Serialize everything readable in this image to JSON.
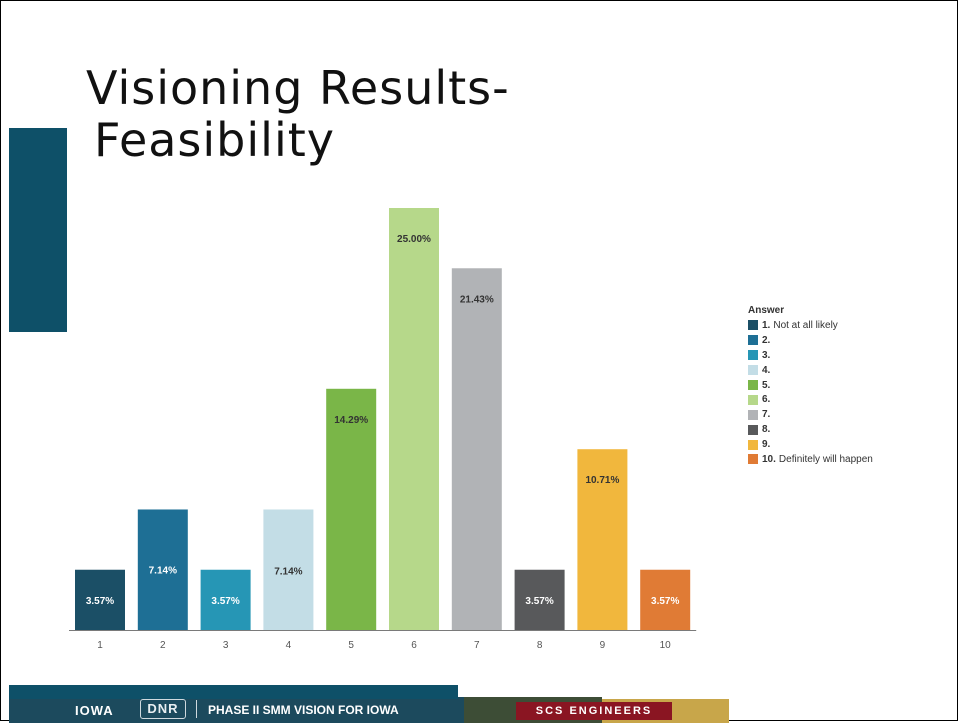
{
  "title": {
    "line1": "Visioning Results-",
    "line2": "Feasibility"
  },
  "chart_data": {
    "type": "bar",
    "categories": [
      "1",
      "2",
      "3",
      "4",
      "5",
      "6",
      "7",
      "8",
      "9",
      "10"
    ],
    "values": [
      3.57,
      7.14,
      3.57,
      7.14,
      14.29,
      25.0,
      21.43,
      3.57,
      10.71,
      3.57
    ],
    "value_labels": [
      "3.57%",
      "7.14%",
      "3.57%",
      "7.14%",
      "14.29%",
      "25.00%",
      "21.43%",
      "3.57%",
      "10.71%",
      "3.57%"
    ],
    "colors": [
      "#1b4f66",
      "#1e6f95",
      "#2696b5",
      "#c3dde6",
      "#7ab648",
      "#b6d88a",
      "#b1b3b6",
      "#58595b",
      "#f1b73d",
      "#e07b35"
    ],
    "label_colors": [
      "#ffffff",
      "#ffffff",
      "#ffffff",
      "#333333",
      "#333333",
      "#333333",
      "#333333",
      "#ffffff",
      "#333333",
      "#ffffff"
    ],
    "ylim": [
      0,
      25
    ],
    "grid": false,
    "legend": {
      "title": "Answer",
      "position": "right",
      "items": [
        {
          "num": "1.",
          "text": "Not at all likely"
        },
        {
          "num": "2.",
          "text": ""
        },
        {
          "num": "3.",
          "text": ""
        },
        {
          "num": "4.",
          "text": ""
        },
        {
          "num": "5.",
          "text": ""
        },
        {
          "num": "6.",
          "text": ""
        },
        {
          "num": "7.",
          "text": ""
        },
        {
          "num": "8.",
          "text": ""
        },
        {
          "num": "9.",
          "text": ""
        },
        {
          "num": "10.",
          "text": "Definitely will happen"
        }
      ]
    }
  },
  "footer": {
    "state": "IOWA",
    "agency": "DNR",
    "program": "PHASE II SMM VISION FOR IOWA",
    "firm": "SCS ENGINEERS"
  }
}
